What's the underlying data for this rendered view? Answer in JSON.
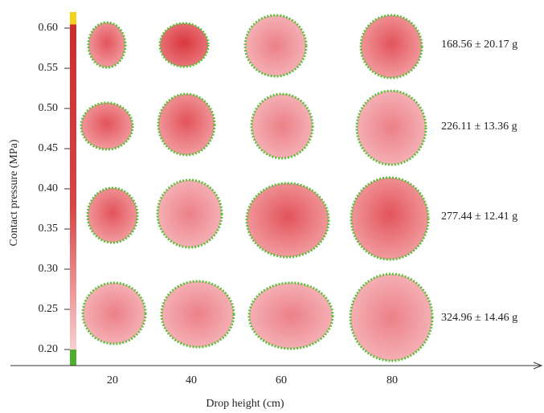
{
  "chart_data": {
    "type": "pressure-map-grid",
    "ylabel": "Contact pressure (MPa)",
    "xlabel": "Drop height (cm)",
    "categories": [
      "20",
      "40",
      "60",
      "80"
    ],
    "rows": [
      "168.56 ± 20.17 g",
      "226.11 ± 13.36 g",
      "277.44 ± 12.41 g",
      "324.96 ± 14.46 g"
    ],
    "ylim": [
      0.18,
      0.62
    ],
    "yticks": [
      {
        "value": 0.6,
        "label": "0.60"
      },
      0.55,
      {
        "value": 0.5,
        "label": "0.50"
      },
      0.45,
      {
        "value": 0.4,
        "label": "0.40"
      },
      0.35,
      {
        "value": 0.3,
        "label": "0.30"
      },
      0.25,
      {
        "value": 0.2,
        "label": "0.20"
      }
    ]
  }
}
